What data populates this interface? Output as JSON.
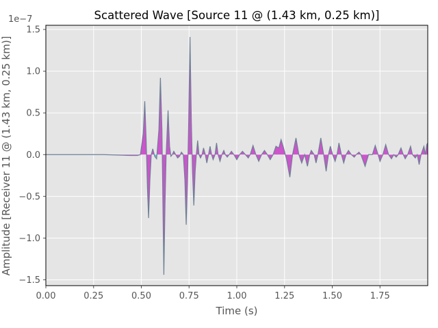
{
  "chart_data": {
    "type": "area",
    "title": "Scattered Wave [Source 11 @ (1.43 km, 0.25 km)]",
    "xlabel": "Time (s)",
    "ylabel": "Amplitude [Receiver 11 @ (1.43 km, 0.25 km)]",
    "y_offset_label": "1e−7",
    "y_scale": 1e-07,
    "xlim": [
      0.0,
      2.0
    ],
    "ylim": [
      -1.57,
      1.55
    ],
    "x_ticks": [
      0.0,
      0.25,
      0.5,
      0.75,
      1.0,
      1.25,
      1.5,
      1.75
    ],
    "x_tick_labels": [
      "0.00",
      "0.25",
      "0.50",
      "0.75",
      "1.00",
      "1.25",
      "1.50",
      "1.75"
    ],
    "y_ticks": [
      -1.5,
      -1.0,
      -0.5,
      0.0,
      0.5,
      1.0,
      1.5
    ],
    "y_tick_labels": [
      "−1.5",
      "−1.0",
      "−0.5",
      "0.0",
      "0.5",
      "1.0",
      "1.5"
    ],
    "grid": true,
    "colors": {
      "background": "#e5e5e5",
      "grid": "#ffffff",
      "line": "#6e7f95",
      "positive_fill": "#cc55cc",
      "negative_fill": "#55cccc"
    },
    "series": [
      {
        "values_scaled_1e-7": true,
        "points": [
          [
            0.0,
            0.0
          ],
          [
            0.3,
            0.0
          ],
          [
            0.375,
            -0.005
          ],
          [
            0.44,
            -0.01
          ],
          [
            0.48,
            -0.01
          ],
          [
            0.495,
            0.0
          ],
          [
            0.51,
            0.25
          ],
          [
            0.518,
            0.64
          ],
          [
            0.525,
            0.2
          ],
          [
            0.532,
            -0.4
          ],
          [
            0.538,
            -0.76
          ],
          [
            0.545,
            -0.3
          ],
          [
            0.552,
            0.0
          ],
          [
            0.56,
            0.07
          ],
          [
            0.57,
            -0.02
          ],
          [
            0.58,
            -0.05
          ],
          [
            0.592,
            0.3
          ],
          [
            0.6,
            0.92
          ],
          [
            0.608,
            0.3
          ],
          [
            0.613,
            -0.6
          ],
          [
            0.618,
            -1.44
          ],
          [
            0.624,
            -0.6
          ],
          [
            0.63,
            0.0
          ],
          [
            0.64,
            0.53
          ],
          [
            0.648,
            0.1
          ],
          [
            0.655,
            -0.02
          ],
          [
            0.662,
            0.0
          ],
          [
            0.67,
            0.04
          ],
          [
            0.68,
            0.0
          ],
          [
            0.69,
            -0.04
          ],
          [
            0.7,
            -0.02
          ],
          [
            0.71,
            0.03
          ],
          [
            0.72,
            0.0
          ],
          [
            0.728,
            -0.3
          ],
          [
            0.735,
            -0.84
          ],
          [
            0.742,
            -0.3
          ],
          [
            0.748,
            0.4
          ],
          [
            0.755,
            1.41
          ],
          [
            0.762,
            0.4
          ],
          [
            0.768,
            -0.2
          ],
          [
            0.775,
            -0.61
          ],
          [
            0.782,
            -0.2
          ],
          [
            0.788,
            0.0
          ],
          [
            0.795,
            0.17
          ],
          [
            0.802,
            0.0
          ],
          [
            0.81,
            -0.04
          ],
          [
            0.818,
            0.0
          ],
          [
            0.826,
            0.08
          ],
          [
            0.835,
            0.0
          ],
          [
            0.843,
            -0.1
          ],
          [
            0.852,
            0.0
          ],
          [
            0.86,
            0.1
          ],
          [
            0.868,
            0.0
          ],
          [
            0.876,
            -0.06
          ],
          [
            0.886,
            0.0
          ],
          [
            0.894,
            0.14
          ],
          [
            0.902,
            0.0
          ],
          [
            0.912,
            -0.08
          ],
          [
            0.922,
            0.0
          ],
          [
            0.932,
            0.05
          ],
          [
            0.94,
            0.0
          ],
          [
            0.95,
            -0.03
          ],
          [
            0.96,
            0.0
          ],
          [
            0.972,
            0.04
          ],
          [
            0.985,
            0.0
          ],
          [
            1.0,
            -0.06
          ],
          [
            1.015,
            0.0
          ],
          [
            1.03,
            0.04
          ],
          [
            1.045,
            0.0
          ],
          [
            1.06,
            -0.04
          ],
          [
            1.07,
            0.0
          ],
          [
            1.085,
            0.11
          ],
          [
            1.1,
            0.0
          ],
          [
            1.115,
            -0.08
          ],
          [
            1.13,
            0.0
          ],
          [
            1.145,
            0.05
          ],
          [
            1.16,
            0.0
          ],
          [
            1.175,
            -0.06
          ],
          [
            1.19,
            0.0
          ],
          [
            1.205,
            0.1
          ],
          [
            1.22,
            0.08
          ],
          [
            1.232,
            0.18
          ],
          [
            1.245,
            0.08
          ],
          [
            1.26,
            -0.05
          ],
          [
            1.278,
            -0.27
          ],
          [
            1.292,
            0.0
          ],
          [
            1.31,
            0.2
          ],
          [
            1.325,
            0.0
          ],
          [
            1.34,
            -0.1
          ],
          [
            1.355,
            0.0
          ],
          [
            1.37,
            -0.14
          ],
          [
            1.382,
            0.0
          ],
          [
            1.39,
            0.05
          ],
          [
            1.405,
            0.0
          ],
          [
            1.415,
            -0.1
          ],
          [
            1.425,
            0.0
          ],
          [
            1.44,
            0.2
          ],
          [
            1.455,
            0.0
          ],
          [
            1.468,
            -0.2
          ],
          [
            1.48,
            0.0
          ],
          [
            1.49,
            0.1
          ],
          [
            1.502,
            0.0
          ],
          [
            1.515,
            -0.08
          ],
          [
            1.525,
            0.0
          ],
          [
            1.535,
            0.14
          ],
          [
            1.548,
            0.0
          ],
          [
            1.56,
            -0.1
          ],
          [
            1.572,
            0.0
          ],
          [
            1.585,
            0.05
          ],
          [
            1.6,
            0.0
          ],
          [
            1.615,
            -0.03
          ],
          [
            1.625,
            0.0
          ],
          [
            1.64,
            0.03
          ],
          [
            1.65,
            0.0
          ],
          [
            1.672,
            -0.14
          ],
          [
            1.69,
            0.0
          ],
          [
            1.71,
            0.0
          ],
          [
            1.725,
            0.11
          ],
          [
            1.74,
            0.0
          ],
          [
            1.75,
            -0.08
          ],
          [
            1.765,
            0.0
          ],
          [
            1.78,
            0.12
          ],
          [
            1.795,
            0.0
          ],
          [
            1.81,
            -0.05
          ],
          [
            1.822,
            0.0
          ],
          [
            1.835,
            -0.03
          ],
          [
            1.845,
            0.0
          ],
          [
            1.86,
            0.08
          ],
          [
            1.872,
            0.0
          ],
          [
            1.882,
            -0.05
          ],
          [
            1.895,
            0.0
          ],
          [
            1.91,
            0.1
          ],
          [
            1.92,
            0.0
          ],
          [
            1.935,
            -0.04
          ],
          [
            1.945,
            0.0
          ],
          [
            1.955,
            -0.12
          ],
          [
            1.965,
            0.0
          ],
          [
            1.98,
            0.1
          ],
          [
            1.988,
            0.0
          ],
          [
            1.995,
            0.12
          ],
          [
            2.0,
            0.14
          ]
        ]
      }
    ]
  }
}
